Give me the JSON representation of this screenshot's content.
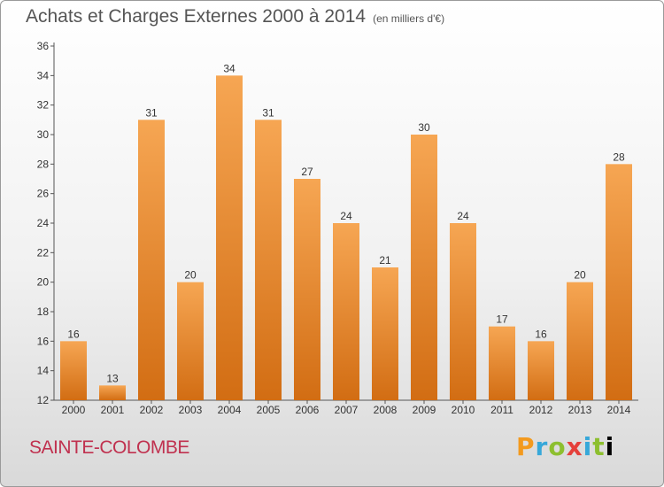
{
  "header": {
    "title": "Achats et Charges Externes 2000 à 2014",
    "unit": "(en milliers d'€)"
  },
  "footer": {
    "place": "SAINTE-COLOMBE",
    "logo_letters": [
      "P",
      "r",
      "o",
      "x",
      "i",
      "t",
      "i"
    ]
  },
  "chart_data": {
    "type": "bar",
    "title": "Achats et Charges Externes 2000 à 2014",
    "subtitle": "(en milliers d'€)",
    "categories": [
      "2000",
      "2001",
      "2002",
      "2003",
      "2004",
      "2005",
      "2006",
      "2007",
      "2008",
      "2009",
      "2010",
      "2011",
      "2012",
      "2013",
      "2014"
    ],
    "values": [
      16,
      13,
      31,
      20,
      34,
      31,
      27,
      24,
      21,
      30,
      24,
      17,
      16,
      20,
      28
    ],
    "ylim": [
      12,
      36
    ],
    "yticks": [
      12,
      14,
      16,
      18,
      20,
      22,
      24,
      26,
      28,
      30,
      32,
      34,
      36
    ],
    "grid": false,
    "bar_color_top": "#f6a653",
    "bar_color_bottom": "#d26d13",
    "xlabel": "",
    "ylabel": ""
  }
}
